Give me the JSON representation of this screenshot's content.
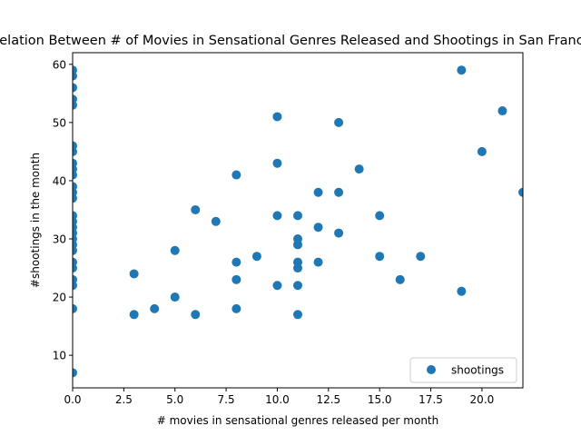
{
  "chart_data": {
    "type": "scatter",
    "title": "Correlation Between # of Movies in Sensational Genres Released and Shootings in San Francisco",
    "xlabel": "# movies in sensational genres released per month",
    "ylabel": "#shootings in the month",
    "xlim": [
      0,
      22
    ],
    "ylim": [
      4.4,
      62
    ],
    "xticks": [
      "0.0",
      "2.5",
      "5.0",
      "7.5",
      "10.0",
      "12.5",
      "15.0",
      "17.5",
      "20.0"
    ],
    "xtick_values": [
      0,
      2.5,
      5,
      7.5,
      10,
      12.5,
      15,
      17.5,
      20
    ],
    "yticks": [
      "10",
      "20",
      "30",
      "40",
      "50",
      "60"
    ],
    "ytick_values": [
      10,
      20,
      30,
      40,
      50,
      60
    ],
    "grid": false,
    "legend_position": "lower-right",
    "marker_color": "#1f77b4",
    "series": [
      {
        "name": "shootings",
        "points": [
          [
            0,
            7
          ],
          [
            0,
            18
          ],
          [
            0,
            22
          ],
          [
            0,
            23
          ],
          [
            0,
            25
          ],
          [
            0,
            26
          ],
          [
            0,
            28
          ],
          [
            0,
            29
          ],
          [
            0,
            30
          ],
          [
            0,
            31
          ],
          [
            0,
            32
          ],
          [
            0,
            33
          ],
          [
            0,
            34
          ],
          [
            0,
            37
          ],
          [
            0,
            38
          ],
          [
            0,
            39
          ],
          [
            0,
            41
          ],
          [
            0,
            42
          ],
          [
            0,
            43
          ],
          [
            0,
            45
          ],
          [
            0,
            46
          ],
          [
            0,
            53
          ],
          [
            0,
            54
          ],
          [
            0,
            56
          ],
          [
            0,
            58
          ],
          [
            0,
            59
          ],
          [
            3,
            17
          ],
          [
            3,
            24
          ],
          [
            4,
            18
          ],
          [
            5,
            20
          ],
          [
            5,
            28
          ],
          [
            6,
            17
          ],
          [
            6,
            35
          ],
          [
            7,
            33
          ],
          [
            8,
            18
          ],
          [
            8,
            23
          ],
          [
            8,
            26
          ],
          [
            8,
            41
          ],
          [
            9,
            27
          ],
          [
            10,
            22
          ],
          [
            10,
            34
          ],
          [
            10,
            43
          ],
          [
            10,
            51
          ],
          [
            11,
            17
          ],
          [
            11,
            22
          ],
          [
            11,
            25
          ],
          [
            11,
            26
          ],
          [
            11,
            29
          ],
          [
            11,
            30
          ],
          [
            11,
            34
          ],
          [
            12,
            26
          ],
          [
            12,
            32
          ],
          [
            12,
            38
          ],
          [
            13,
            31
          ],
          [
            13,
            38
          ],
          [
            13,
            50
          ],
          [
            14,
            42
          ],
          [
            15,
            27
          ],
          [
            15,
            34
          ],
          [
            16,
            23
          ],
          [
            17,
            27
          ],
          [
            19,
            21
          ],
          [
            19,
            59
          ],
          [
            20,
            45
          ],
          [
            21,
            52
          ],
          [
            22,
            38
          ]
        ]
      }
    ]
  }
}
